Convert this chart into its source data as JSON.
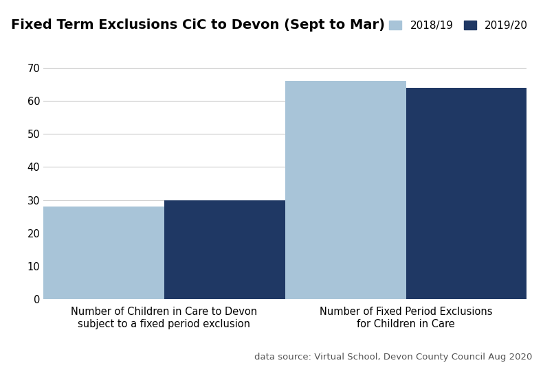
{
  "title": "Fixed Term Exclusions CiC to Devon (Sept to Mar)",
  "categories": [
    "Number of Children in Care to Devon\nsubject to a fixed period exclusion",
    "Number of Fixed Period Exclusions\nfor Children in Care"
  ],
  "series": {
    "2018/19": [
      28,
      66
    ],
    "2019/20": [
      30,
      64
    ]
  },
  "colors": {
    "2018/19": "#a8c4d8",
    "2019/20": "#1f3864"
  },
  "ylim": [
    0,
    75
  ],
  "yticks": [
    0,
    10,
    20,
    30,
    40,
    50,
    60,
    70
  ],
  "legend_labels": [
    "2018/19",
    "2019/20"
  ],
  "footnote": "data source: Virtual School, Devon County Council Aug 2020",
  "bar_width": 0.25,
  "background_color": "#ffffff",
  "plot_bg_color": "#ffffff",
  "grid_color": "#cccccc",
  "title_fontsize": 14,
  "tick_fontsize": 10.5,
  "legend_fontsize": 11,
  "footnote_fontsize": 9.5
}
